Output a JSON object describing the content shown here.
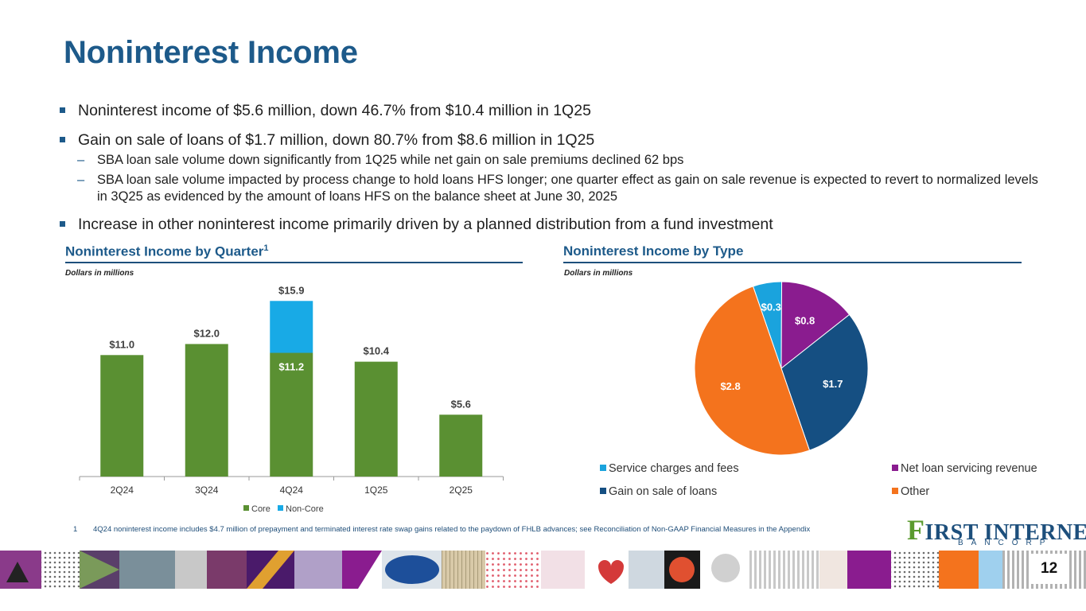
{
  "title": "Noninterest Income",
  "bullets": [
    {
      "text": "Noninterest income of $5.6 million, down 46.7% from $10.4 million in 1Q25",
      "sub": []
    },
    {
      "text": "Gain on sale of loans of $1.7 million, down 80.7% from $8.6 million in 1Q25",
      "sub": [
        "SBA loan sale volume down significantly from 1Q25 while net gain on sale premiums declined 62 bps",
        "SBA loan sale volume impacted by process change to hold loans HFS longer; one quarter effect as gain on sale revenue is expected to revert to normalized levels in 3Q25 as evidenced by the amount of loans HFS on the balance sheet at June 30, 2025"
      ]
    },
    {
      "text": "Increase in other noninterest income primarily driven by a planned distribution from a fund investment",
      "sub": []
    }
  ],
  "dash": "–",
  "left_section": {
    "title": "Noninterest Income by Quarter",
    "superscript": "1",
    "units": "Dollars in millions"
  },
  "right_section": {
    "title": "Noninterest Income by Type",
    "units": "Dollars in millions"
  },
  "chart_data": [
    {
      "type": "bar",
      "stacked": true,
      "title": "Noninterest Income by Quarter",
      "categories": [
        "2Q24",
        "3Q24",
        "4Q24",
        "1Q25",
        "2Q25"
      ],
      "series": [
        {
          "name": "Core",
          "color": "#5a9032",
          "values": [
            11.0,
            12.0,
            11.2,
            10.4,
            5.6
          ]
        },
        {
          "name": "Non-Core",
          "color": "#18aae6",
          "values": [
            0,
            0,
            4.7,
            0,
            0
          ]
        }
      ],
      "total_labels": [
        "$11.0",
        "$12.0",
        "$15.9",
        "$10.4",
        "$5.6"
      ],
      "inner_labels": [
        null,
        null,
        "$11.2",
        null,
        null
      ],
      "ylim": [
        0,
        17
      ],
      "legend": "bottom"
    },
    {
      "type": "pie",
      "title": "Noninterest Income by Type",
      "slices": [
        {
          "name": "Service charges and fees",
          "value": 0.3,
          "label": "$0.3",
          "color": "#1aa3dd"
        },
        {
          "name": "Net loan servicing revenue",
          "value": 0.8,
          "label": "$0.8",
          "color": "#8a1c8f"
        },
        {
          "name": "Gain on sale of loans",
          "value": 1.7,
          "label": "$1.7",
          "color": "#154f82"
        },
        {
          "name": "Other",
          "value": 2.8,
          "label": "$2.8",
          "color": "#f4731d"
        }
      ],
      "legend": "bottom"
    }
  ],
  "footnote": {
    "number": "1",
    "text": "4Q24 noninterest income includes $4.7 million of prepayment and terminated interest rate swap gains related to the paydown of FHLB advances; see Reconciliation of Non-GAAP Financial Measures in the Appendix"
  },
  "logo": {
    "initial": "F",
    "line1_rest": "IRST INTERNET",
    "line2": "BANCORP"
  },
  "page_number": "12",
  "colors": {
    "brand_blue": "#1d5a8a",
    "core_green": "#5a9032",
    "noncore_blue": "#18aae6"
  }
}
